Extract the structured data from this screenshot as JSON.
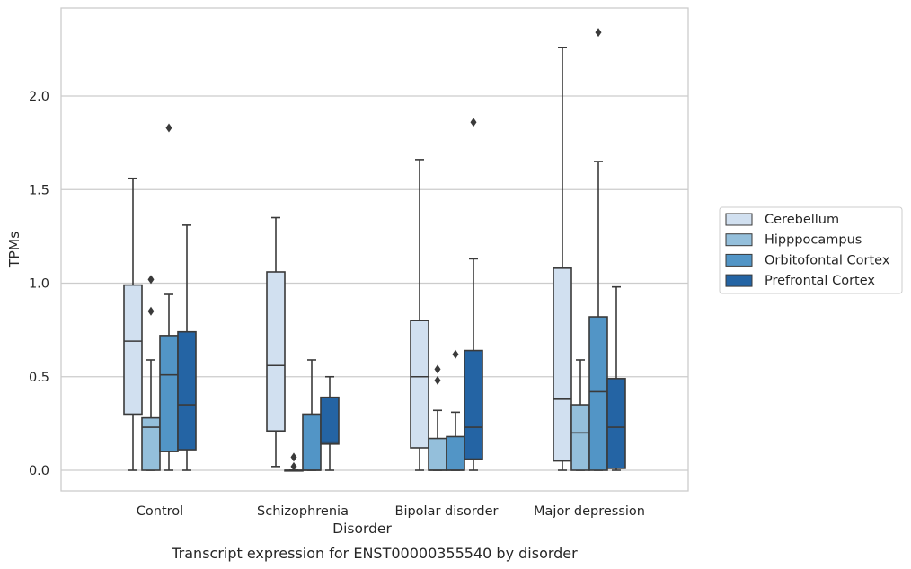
{
  "chart_data": {
    "type": "box",
    "xlabel": "Disorder",
    "ylabel": "TPMs",
    "caption": "Transcript expression for ENST00000355540 by disorder",
    "categories": [
      "Control",
      "Schizophrenia",
      "Bipolar disorder",
      "Major depression"
    ],
    "yticks": [
      "0.0",
      "0.5",
      "1.0",
      "1.5",
      "2.0"
    ],
    "ytick_values": [
      0.0,
      0.5,
      1.0,
      1.5,
      2.0
    ],
    "ylim": [
      -0.11,
      2.46
    ],
    "grid": "horizontal",
    "legend_position": "right",
    "series": [
      {
        "name": "Cerebellum",
        "color": "#d1e0f0",
        "boxes": [
          {
            "whislo": 0.0,
            "q1": 0.3,
            "med": 0.69,
            "q3": 0.99,
            "whishi": 1.56,
            "fliers": []
          },
          {
            "whislo": 0.02,
            "q1": 0.21,
            "med": 0.56,
            "q3": 1.06,
            "whishi": 1.35,
            "fliers": []
          },
          {
            "whislo": 0.0,
            "q1": 0.12,
            "med": 0.5,
            "q3": 0.8,
            "whishi": 1.66,
            "fliers": []
          },
          {
            "whislo": 0.0,
            "q1": 0.05,
            "med": 0.38,
            "q3": 1.08,
            "whishi": 2.26,
            "fliers": []
          }
        ]
      },
      {
        "name": "Hipppocampus",
        "color": "#94bfdb",
        "boxes": [
          {
            "whislo": 0.0,
            "q1": 0.0,
            "med": 0.23,
            "q3": 0.28,
            "whishi": 0.59,
            "fliers": [
              0.85,
              1.02
            ]
          },
          {
            "whislo": 0.0,
            "q1": 0.0,
            "med": 0.0,
            "q3": 0.0,
            "whishi": 0.0,
            "fliers": [
              0.02,
              0.07
            ]
          },
          {
            "whislo": 0.0,
            "q1": 0.0,
            "med": 0.0,
            "q3": 0.17,
            "whishi": 0.32,
            "fliers": [
              0.48,
              0.54
            ]
          },
          {
            "whislo": 0.0,
            "q1": 0.0,
            "med": 0.2,
            "q3": 0.35,
            "whishi": 0.59,
            "fliers": []
          }
        ]
      },
      {
        "name": "Orbitofontal Cortex",
        "color": "#5295c6",
        "boxes": [
          {
            "whislo": 0.0,
            "q1": 0.1,
            "med": 0.51,
            "q3": 0.72,
            "whishi": 0.94,
            "fliers": [
              1.83
            ]
          },
          {
            "whislo": 0.0,
            "q1": 0.0,
            "med": 0.0,
            "q3": 0.3,
            "whishi": 0.59,
            "fliers": []
          },
          {
            "whislo": 0.0,
            "q1": 0.0,
            "med": 0.0,
            "q3": 0.18,
            "whishi": 0.31,
            "fliers": [
              0.62
            ]
          },
          {
            "whislo": 0.0,
            "q1": 0.0,
            "med": 0.42,
            "q3": 0.82,
            "whishi": 1.65,
            "fliers": [
              2.34
            ]
          }
        ]
      },
      {
        "name": "Prefrontal Cortex",
        "color": "#2464a4",
        "boxes": [
          {
            "whislo": 0.0,
            "q1": 0.11,
            "med": 0.35,
            "q3": 0.74,
            "whishi": 1.31,
            "fliers": []
          },
          {
            "whislo": 0.0,
            "q1": 0.14,
            "med": 0.15,
            "q3": 0.39,
            "whishi": 0.5,
            "fliers": []
          },
          {
            "whislo": 0.0,
            "q1": 0.06,
            "med": 0.23,
            "q3": 0.64,
            "whishi": 1.13,
            "fliers": [
              1.86
            ]
          },
          {
            "whislo": 0.0,
            "q1": 0.01,
            "med": 0.23,
            "q3": 0.49,
            "whishi": 0.98,
            "fliers": []
          }
        ]
      }
    ]
  }
}
